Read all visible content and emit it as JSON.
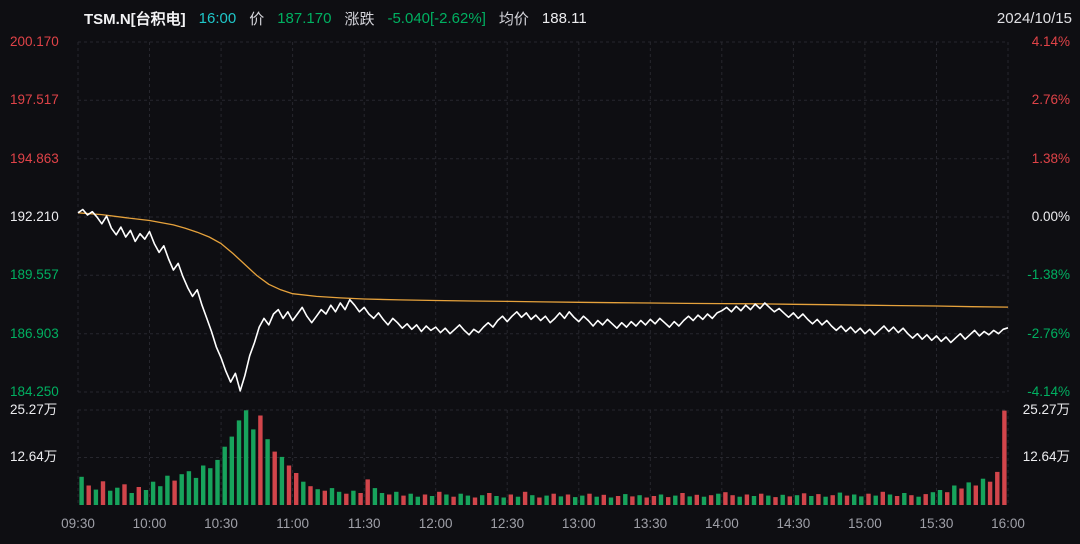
{
  "header": {
    "symbol": "TSM.N[台积电]",
    "time": "16:00",
    "price_label": "价",
    "price_value": "187.170",
    "change_label": "涨跌",
    "change_value": "-5.040[-2.62%]",
    "avg_label": "均价",
    "avg_value": "188.11",
    "date": "2024/10/15"
  },
  "colors": {
    "background": "#0e0e12",
    "up": "#e04348",
    "down": "#00b061",
    "flat": "#ececef",
    "price_line": "#ffffff",
    "avg_line": "#e6a23c",
    "time_accent": "#1fc6c8",
    "grid": "#27272e",
    "axis_text": "#9fa0a8",
    "vol_up": "#d2454b",
    "vol_down": "#17a35c"
  },
  "axes": {
    "price_labels": [
      "200.170",
      "197.517",
      "194.863",
      "192.210",
      "189.557",
      "186.903",
      "184.250"
    ],
    "price_label_tones": [
      "up",
      "up",
      "up",
      "flat",
      "down",
      "down",
      "down"
    ],
    "percent_labels": [
      "4.14%",
      "2.76%",
      "1.38%",
      "0.00%",
      "-1.38%",
      "-2.76%",
      "-4.14%"
    ],
    "volume_labels": [
      "25.27万",
      "12.64万"
    ],
    "time_labels": [
      "09:30",
      "10:00",
      "10:30",
      "11:00",
      "11:30",
      "12:00",
      "12:30",
      "13:00",
      "13:30",
      "14:00",
      "14:30",
      "15:00",
      "15:30",
      "16:00"
    ]
  },
  "chart_data": {
    "type": "line",
    "title": "TSM.N 台积电 intraday price / average price / volume",
    "x_axis": {
      "start": "09:30",
      "end": "16:00",
      "total_minutes": 390
    },
    "y_axis_price": {
      "min": 184.25,
      "max": 200.17,
      "baseline": 192.21
    },
    "y_axis_percent": {
      "min": -4.14,
      "max": 4.14,
      "baseline": 0.0
    },
    "volume_axis": {
      "max": 25.27,
      "mid": 12.64,
      "unit": "万"
    },
    "grid": true,
    "series": [
      {
        "name": "price",
        "color_key": "price_line",
        "step_minutes": 2,
        "values": [
          192.4,
          192.55,
          192.3,
          192.45,
          192.2,
          191.9,
          192.25,
          191.7,
          191.4,
          191.75,
          191.3,
          191.6,
          191.1,
          191.45,
          191.2,
          191.55,
          191.0,
          190.6,
          190.9,
          190.3,
          189.8,
          190.1,
          189.5,
          189.0,
          188.6,
          188.9,
          188.2,
          187.6,
          187.0,
          186.3,
          185.8,
          185.2,
          184.7,
          185.1,
          184.3,
          185.0,
          185.9,
          186.5,
          187.2,
          187.6,
          187.3,
          187.8,
          188.0,
          187.6,
          187.9,
          187.5,
          187.8,
          188.1,
          187.7,
          187.4,
          187.7,
          188.0,
          187.8,
          188.2,
          187.9,
          188.3,
          188.0,
          188.45,
          188.2,
          187.9,
          188.1,
          187.8,
          187.6,
          187.85,
          187.55,
          187.3,
          187.6,
          187.4,
          187.15,
          187.35,
          187.1,
          187.3,
          187.0,
          187.25,
          187.05,
          187.2,
          186.95,
          187.15,
          186.9,
          187.1,
          187.3,
          187.05,
          186.85,
          187.1,
          186.95,
          187.2,
          187.4,
          187.2,
          187.5,
          187.7,
          187.45,
          187.7,
          187.9,
          187.65,
          187.85,
          187.55,
          187.75,
          187.5,
          187.7,
          187.4,
          187.6,
          187.85,
          187.6,
          187.9,
          187.65,
          187.45,
          187.7,
          187.5,
          187.25,
          187.5,
          187.3,
          187.55,
          187.35,
          187.15,
          187.4,
          187.2,
          187.45,
          187.25,
          187.5,
          187.3,
          187.55,
          187.35,
          187.6,
          187.4,
          187.2,
          187.45,
          187.25,
          187.5,
          187.7,
          187.5,
          187.75,
          187.55,
          187.8,
          187.6,
          187.85,
          187.95,
          188.1,
          187.9,
          188.15,
          187.95,
          188.2,
          188.0,
          188.25,
          188.05,
          188.3,
          188.1,
          187.9,
          188.05,
          187.85,
          187.65,
          187.85,
          187.6,
          187.8,
          187.55,
          187.35,
          187.55,
          187.3,
          187.5,
          187.25,
          187.05,
          187.25,
          187.0,
          187.2,
          186.95,
          187.15,
          186.9,
          187.1,
          186.85,
          187.05,
          187.25,
          187.0,
          187.2,
          186.95,
          187.15,
          186.9,
          186.7,
          186.9,
          186.65,
          186.85,
          186.6,
          186.8,
          186.55,
          186.75,
          186.5,
          186.7,
          186.9,
          186.65,
          186.85,
          187.05,
          186.8,
          187.0,
          186.85,
          187.05,
          186.9,
          187.1,
          187.17
        ]
      },
      {
        "name": "avg_price",
        "color_key": "avg_line",
        "points": [
          [
            0,
            192.4
          ],
          [
            10,
            192.32
          ],
          [
            20,
            192.18
          ],
          [
            30,
            192.05
          ],
          [
            40,
            191.85
          ],
          [
            45,
            191.7
          ],
          [
            50,
            191.52
          ],
          [
            55,
            191.3
          ],
          [
            60,
            191.0
          ],
          [
            65,
            190.55
          ],
          [
            70,
            190.05
          ],
          [
            75,
            189.55
          ],
          [
            80,
            189.15
          ],
          [
            85,
            188.9
          ],
          [
            90,
            188.72
          ],
          [
            100,
            188.6
          ],
          [
            110,
            188.53
          ],
          [
            120,
            188.48
          ],
          [
            135,
            188.44
          ],
          [
            150,
            188.41
          ],
          [
            165,
            188.39
          ],
          [
            180,
            188.37
          ],
          [
            195,
            188.35
          ],
          [
            210,
            188.33
          ],
          [
            225,
            188.31
          ],
          [
            240,
            188.3
          ],
          [
            255,
            188.28
          ],
          [
            270,
            188.27
          ],
          [
            285,
            188.26
          ],
          [
            300,
            188.24
          ],
          [
            315,
            188.22
          ],
          [
            330,
            188.2
          ],
          [
            345,
            188.18
          ],
          [
            360,
            188.16
          ],
          [
            375,
            188.13
          ],
          [
            390,
            188.11
          ]
        ]
      }
    ],
    "volume": {
      "step_minutes": 3,
      "unit": "万",
      "values": [
        7.5,
        5.2,
        4.1,
        6.3,
        3.8,
        4.6,
        5.5,
        3.2,
        4.8,
        4.0,
        6.2,
        5.0,
        7.8,
        6.5,
        8.2,
        9.0,
        7.2,
        10.5,
        9.8,
        12.0,
        15.5,
        18.2,
        22.5,
        25.2,
        20.1,
        23.8,
        17.5,
        14.2,
        12.8,
        10.5,
        8.5,
        6.2,
        5.0,
        4.2,
        3.8,
        4.5,
        3.5,
        3.0,
        3.8,
        3.2,
        6.8,
        4.5,
        3.2,
        2.8,
        3.5,
        2.5,
        3.0,
        2.2,
        2.8,
        2.4,
        3.5,
        2.8,
        2.2,
        3.0,
        2.5,
        2.0,
        2.6,
        3.2,
        2.4,
        2.0,
        2.8,
        2.2,
        3.5,
        2.6,
        2.0,
        2.5,
        3.0,
        2.3,
        2.8,
        2.1,
        2.5,
        3.0,
        2.2,
        2.7,
        2.0,
        2.4,
        2.9,
        2.3,
        2.6,
        2.0,
        2.4,
        2.8,
        2.1,
        2.5,
        3.2,
        2.3,
        2.7,
        2.2,
        2.6,
        3.0,
        3.4,
        2.6,
        2.2,
        2.8,
        2.4,
        3.0,
        2.5,
        2.1,
        2.7,
        2.3,
        2.6,
        3.1,
        2.4,
        2.9,
        2.2,
        2.6,
        3.3,
        2.5,
        2.8,
        2.3,
        3.0,
        2.5,
        3.5,
        2.8,
        2.4,
        3.2,
        2.6,
        2.2,
        2.9,
        3.4,
        4.0,
        3.4,
        5.2,
        4.4,
        6.0,
        5.2,
        7.0,
        6.2,
        8.8,
        25.1
      ],
      "tones": [
        "g",
        "r",
        "g",
        "r",
        "g",
        "g",
        "r",
        "g",
        "r",
        "g",
        "g",
        "g",
        "g",
        "r",
        "g",
        "g",
        "g",
        "g",
        "g",
        "g",
        "g",
        "g",
        "g",
        "g",
        "g",
        "r",
        "g",
        "r",
        "g",
        "r",
        "r",
        "g",
        "r",
        "g",
        "r",
        "g",
        "g",
        "r",
        "g",
        "r",
        "r",
        "g",
        "g",
        "r",
        "g",
        "r",
        "g",
        "g",
        "r",
        "g",
        "r",
        "g",
        "r",
        "g",
        "g",
        "r",
        "g",
        "r",
        "g",
        "g",
        "r",
        "g",
        "r",
        "g",
        "r",
        "g",
        "r",
        "g",
        "r",
        "g",
        "g",
        "r",
        "g",
        "r",
        "g",
        "r",
        "g",
        "r",
        "g",
        "r",
        "r",
        "g",
        "r",
        "g",
        "r",
        "g",
        "r",
        "g",
        "r",
        "g",
        "r",
        "r",
        "g",
        "r",
        "g",
        "r",
        "g",
        "r",
        "g",
        "r",
        "g",
        "r",
        "g",
        "r",
        "g",
        "r",
        "g",
        "r",
        "g",
        "g",
        "r",
        "g",
        "r",
        "g",
        "r",
        "g",
        "r",
        "g",
        "r",
        "g",
        "g",
        "r",
        "g",
        "r",
        "g",
        "r",
        "g",
        "r",
        "r",
        "r"
      ]
    }
  }
}
